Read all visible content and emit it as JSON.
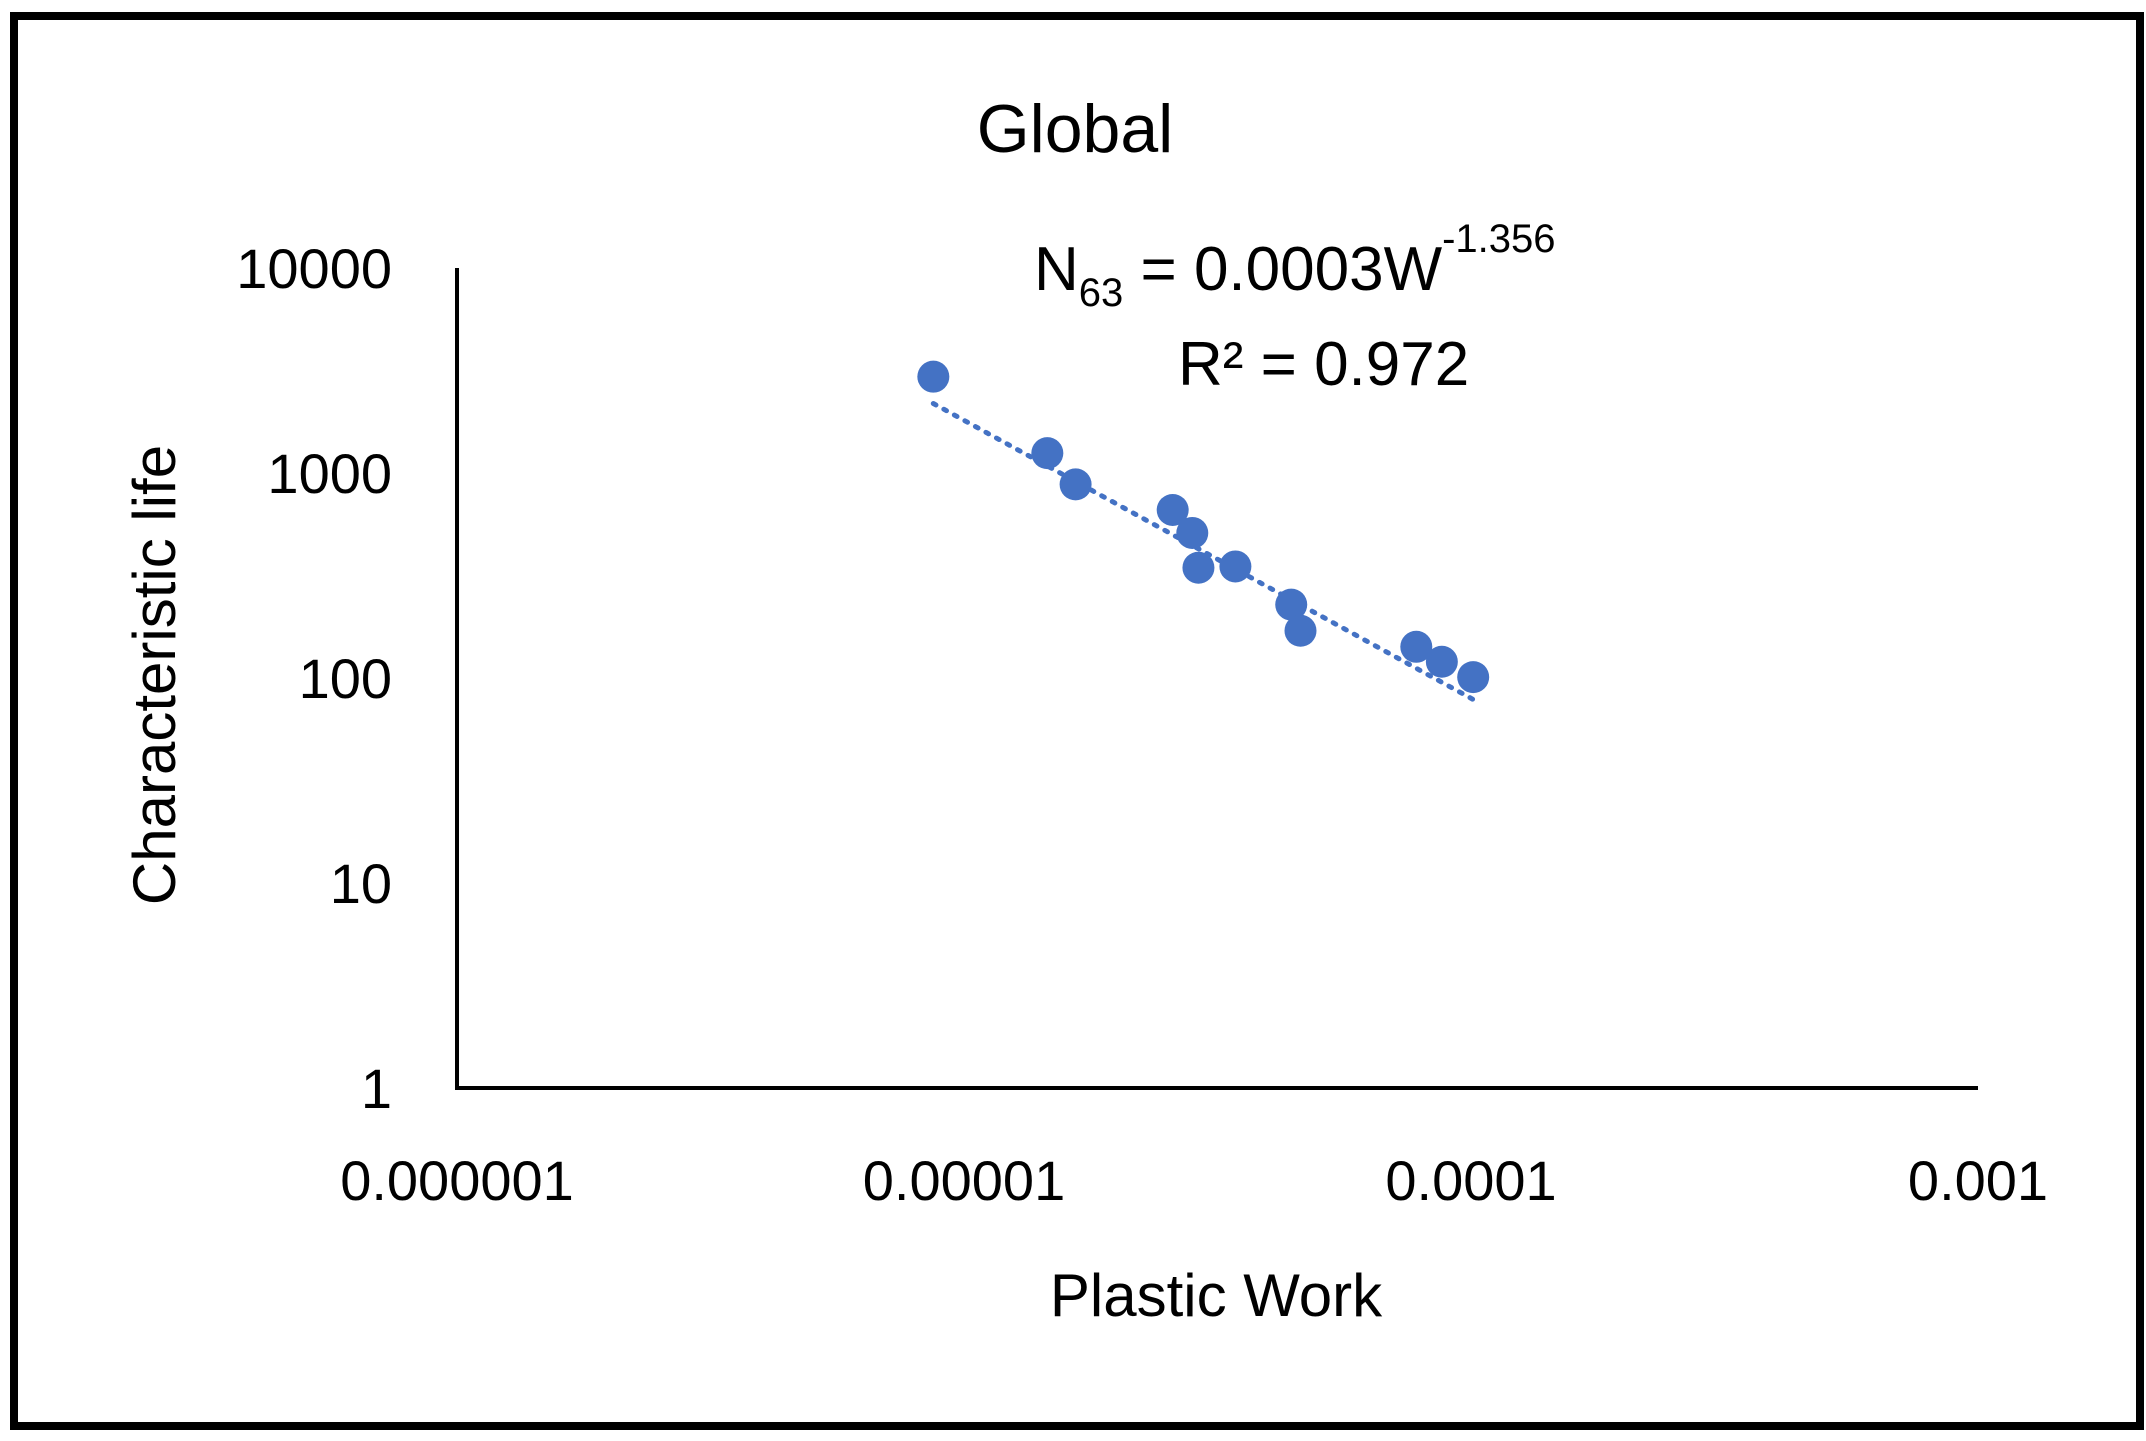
{
  "chart_data": {
    "type": "scatter",
    "title": "Global",
    "xlabel": "Plastic Work",
    "ylabel": "Characteristic life",
    "x_scale": "log",
    "y_scale": "log",
    "xlim": [
      1e-06,
      0.001
    ],
    "ylim": [
      1,
      10000
    ],
    "x_tick_labels": [
      "0.000001",
      "0.00001",
      "0.0001",
      "0.001"
    ],
    "y_tick_labels": [
      "1",
      "10",
      "100",
      "1000",
      "10000"
    ],
    "grid": false,
    "legend": "none",
    "point_color": "#4472C4",
    "points": [
      {
        "x": 8.7e-06,
        "y": 2950
      },
      {
        "x": 1.46e-05,
        "y": 1250
      },
      {
        "x": 1.66e-05,
        "y": 880
      },
      {
        "x": 2.58e-05,
        "y": 660
      },
      {
        "x": 2.82e-05,
        "y": 510
      },
      {
        "x": 2.9e-05,
        "y": 345
      },
      {
        "x": 3.43e-05,
        "y": 350
      },
      {
        "x": 4.42e-05,
        "y": 228
      },
      {
        "x": 4.61e-05,
        "y": 170
      },
      {
        "x": 7.8e-05,
        "y": 142
      },
      {
        "x": 8.76e-05,
        "y": 120
      },
      {
        "x": 0.000101,
        "y": 101
      }
    ],
    "trendline": {
      "type": "power",
      "style": "dotted",
      "color": "#4472C4",
      "coefficient": 0.0003,
      "exponent": -1.356,
      "x_range": [
        8.7e-06,
        0.000101
      ]
    },
    "annotation": {
      "eq_main": "N",
      "eq_subscript": "63",
      "eq_rest": " = 0.0003W",
      "eq_superscript": "-1.356",
      "r2": "R² = 0.972"
    }
  }
}
